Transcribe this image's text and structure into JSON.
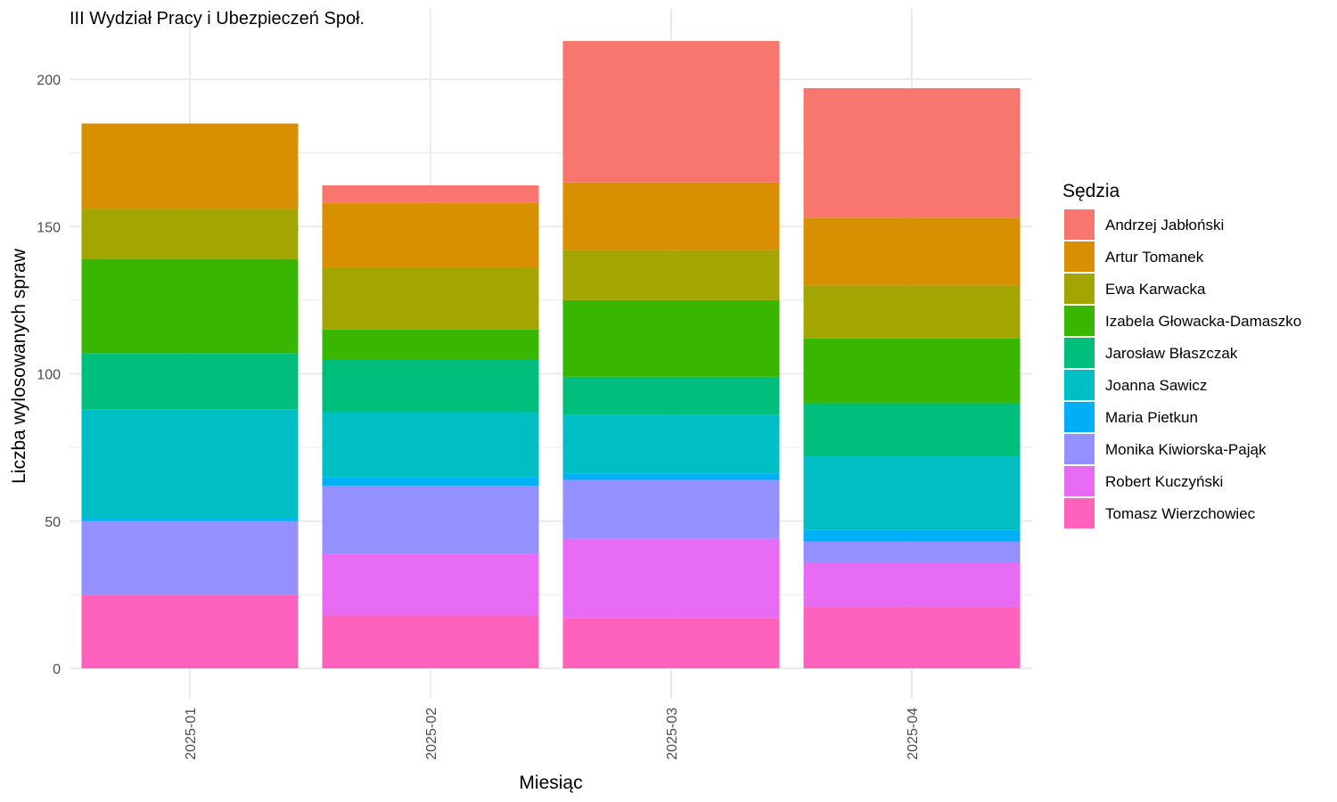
{
  "chart_data": {
    "type": "bar",
    "stacked": true,
    "title": "III Wydział Pracy i Ubezpieczeń Społ.",
    "xlabel": "Miesiąc",
    "ylabel": "Liczba wylosowanych spraw",
    "ylim": [
      0,
      213
    ],
    "yticks": [
      0,
      50,
      100,
      150,
      200
    ],
    "grid": true,
    "legend_title": "Sędzia",
    "legend_position": "right",
    "categories": [
      "2025-01",
      "2025-02",
      "2025-03",
      "2025-04"
    ],
    "series": [
      {
        "name": "Andrzej Jabłoński",
        "color": "#F8766D",
        "values": [
          0,
          6,
          48,
          44
        ]
      },
      {
        "name": "Artur Tomanek",
        "color": "#D89000",
        "values": [
          29,
          22,
          23,
          23
        ]
      },
      {
        "name": "Ewa Karwacka",
        "color": "#A3A500",
        "values": [
          17,
          21,
          17,
          18
        ]
      },
      {
        "name": "Izabela Głowacka-Damaszko",
        "color": "#39B600",
        "values": [
          32,
          10,
          26,
          22
        ]
      },
      {
        "name": "Jarosław Błaszczak",
        "color": "#00BF7D",
        "values": [
          19,
          18,
          13,
          18
        ]
      },
      {
        "name": "Joanna Sawicz",
        "color": "#00BFC4",
        "values": [
          37,
          22,
          20,
          25
        ]
      },
      {
        "name": "Maria Pietkun",
        "color": "#00B0F6",
        "values": [
          1,
          3,
          2,
          4
        ]
      },
      {
        "name": "Monika Kiwiorska-Pająk",
        "color": "#9590FF",
        "values": [
          25,
          23,
          20,
          7
        ]
      },
      {
        "name": "Robert Kuczyński",
        "color": "#E76BF3",
        "values": [
          0,
          21,
          27,
          15
        ]
      },
      {
        "name": "Tomasz Wierzchowiec",
        "color": "#FF62BC",
        "values": [
          25,
          18,
          17,
          21
        ]
      }
    ]
  }
}
